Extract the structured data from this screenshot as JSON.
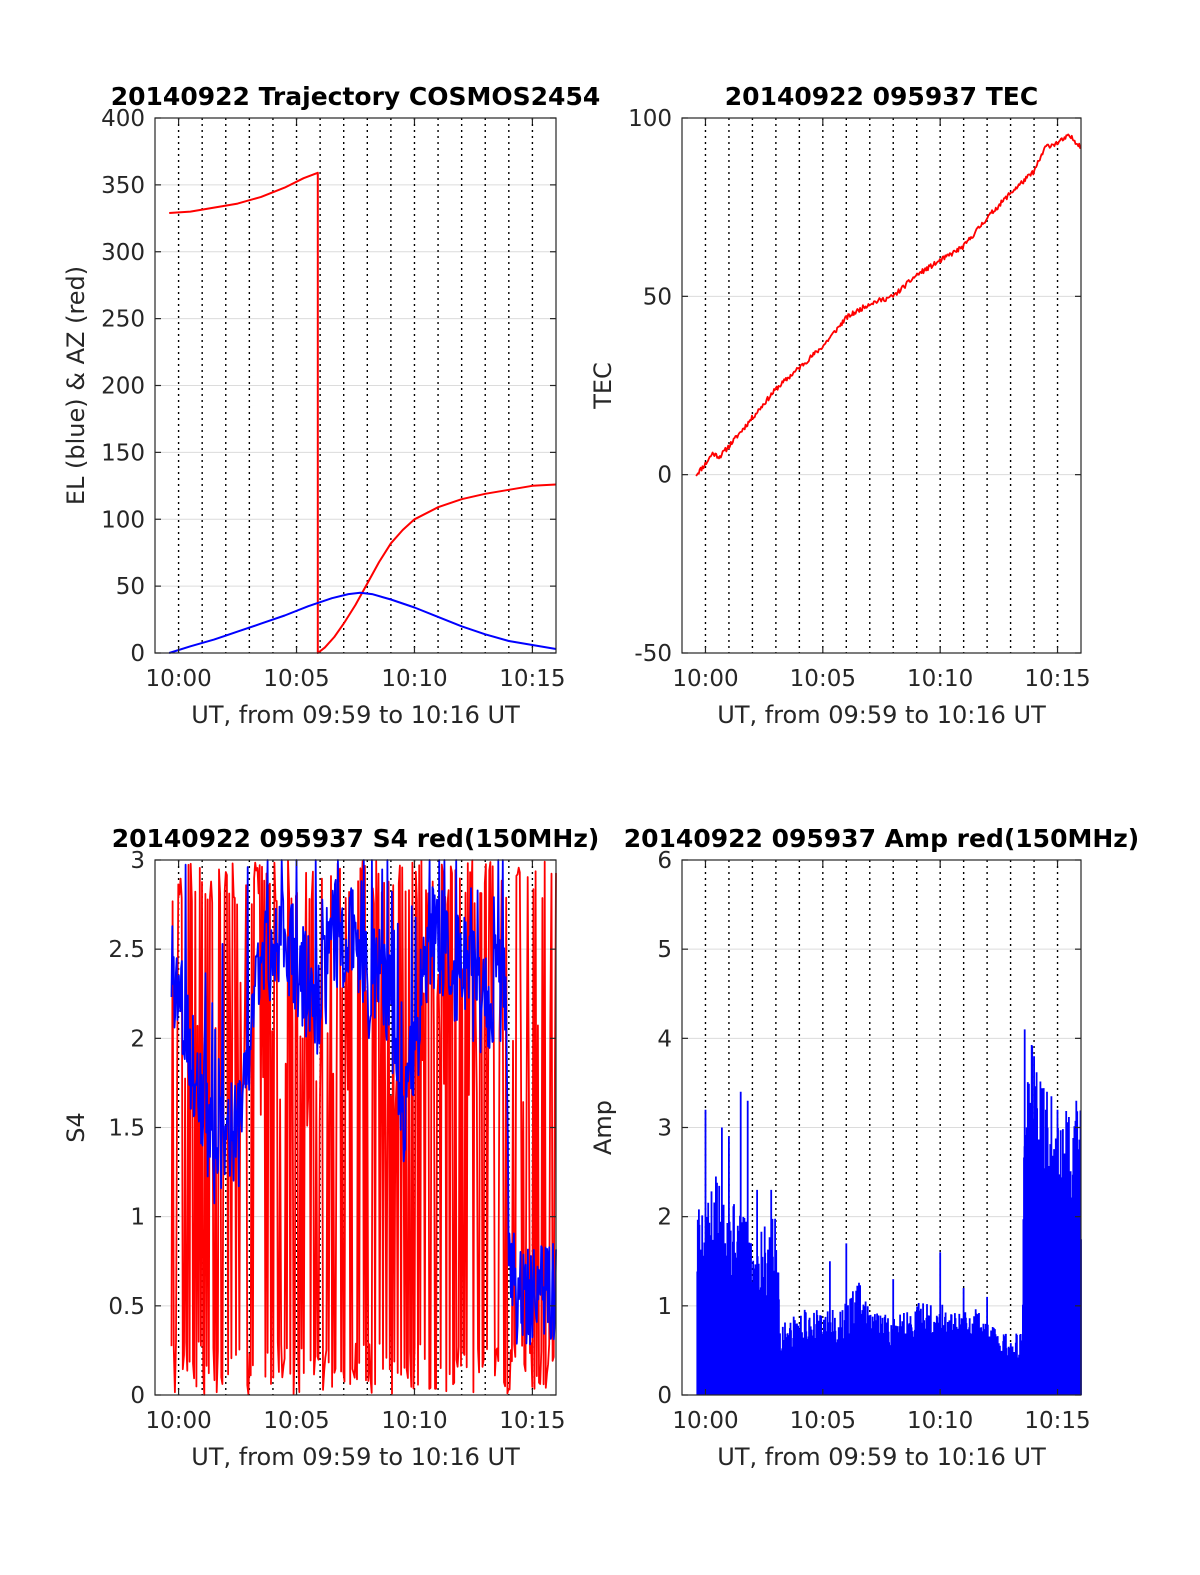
{
  "chart_data": [
    {
      "type": "line",
      "title": "20140922 Trajectory COSMOS2454",
      "xlabel": "UT, from 09:59 to 10:16 UT",
      "ylabel": "EL (blue) & AZ (red)",
      "xlim_minutes_after_0959": [
        0,
        17
      ],
      "ylim": [
        0,
        400
      ],
      "yticks": [
        "0",
        "50",
        "100",
        "150",
        "200",
        "250",
        "300",
        "350",
        "400"
      ],
      "xtick_labels": [
        "10:00",
        "10:05",
        "10:10",
        "10:15"
      ],
      "xtick_minutes": [
        1,
        6,
        11,
        16
      ],
      "grid_dotted_minutes": [
        1,
        2,
        3,
        4,
        5,
        6,
        7,
        8,
        9,
        10,
        11,
        12,
        13,
        14,
        15,
        16
      ],
      "series": [
        {
          "color": "#ff0000",
          "style": "smooth",
          "points": [
            [
              0.6,
              329
            ],
            [
              1.5,
              330
            ],
            [
              2.5,
              333
            ],
            [
              3.5,
              336
            ],
            [
              4.5,
              341
            ],
            [
              5.5,
              348
            ],
            [
              6.3,
              355
            ],
            [
              6.9,
              359
            ],
            [
              6.9,
              0
            ],
            [
              7.2,
              4
            ],
            [
              7.6,
              12
            ],
            [
              8.0,
              22
            ],
            [
              8.5,
              36
            ],
            [
              9.0,
              52
            ],
            [
              9.5,
              68
            ],
            [
              10.0,
              82
            ],
            [
              10.5,
              92
            ],
            [
              11.0,
              100
            ],
            [
              12.0,
              109
            ],
            [
              13.0,
              115
            ],
            [
              14.0,
              119
            ],
            [
              15.0,
              122
            ],
            [
              16.0,
              125
            ],
            [
              17.0,
              126
            ]
          ]
        },
        {
          "color": "#0000ff",
          "style": "smooth",
          "points": [
            [
              0.6,
              0
            ],
            [
              1.5,
              5
            ],
            [
              2.5,
              10
            ],
            [
              3.5,
              16
            ],
            [
              4.5,
              22
            ],
            [
              5.5,
              28
            ],
            [
              6.5,
              35
            ],
            [
              7.5,
              41
            ],
            [
              8.2,
              44
            ],
            [
              8.7,
              45
            ],
            [
              9.2,
              44
            ],
            [
              10.0,
              40
            ],
            [
              11.0,
              34
            ],
            [
              12.0,
              27
            ],
            [
              13.0,
              20
            ],
            [
              14.0,
              14
            ],
            [
              15.0,
              9
            ],
            [
              16.0,
              6
            ],
            [
              17.0,
              3
            ]
          ]
        }
      ]
    },
    {
      "type": "line",
      "title": "20140922 095937 TEC",
      "xlabel": "UT, from 09:59 to 10:16 UT",
      "ylabel": "TEC",
      "xlim_minutes_after_0959": [
        0,
        17
      ],
      "ylim": [
        -50,
        100
      ],
      "yticks": [
        "-50",
        "0",
        "50",
        "100"
      ],
      "xtick_labels": [
        "10:00",
        "10:05",
        "10:10",
        "10:15"
      ],
      "xtick_minutes": [
        1,
        6,
        11,
        16
      ],
      "grid_dotted_minutes": [
        1,
        2,
        3,
        4,
        5,
        6,
        7,
        8,
        9,
        10,
        11,
        12,
        13,
        14,
        15,
        16
      ],
      "series": [
        {
          "color": "#ff0000",
          "style": "jitter",
          "jitter": 0.7,
          "samples": 420,
          "seed": 11,
          "points": [
            [
              0.6,
              0
            ],
            [
              1.0,
              3
            ],
            [
              1.3,
              6
            ],
            [
              1.6,
              5
            ],
            [
              2.0,
              8
            ],
            [
              3.0,
              16
            ],
            [
              4.0,
              24
            ],
            [
              4.5,
              27
            ],
            [
              5.0,
              30
            ],
            [
              6.0,
              36
            ],
            [
              7.0,
              44
            ],
            [
              8.0,
              48
            ],
            [
              9.0,
              50
            ],
            [
              9.5,
              53
            ],
            [
              10.0,
              56
            ],
            [
              11.0,
              60
            ],
            [
              12.0,
              64
            ],
            [
              13.0,
              72
            ],
            [
              14.0,
              79
            ],
            [
              15.0,
              85
            ],
            [
              15.5,
              92
            ],
            [
              16.0,
              93
            ],
            [
              16.5,
              95
            ],
            [
              17.0,
              92
            ]
          ]
        }
      ]
    },
    {
      "type": "line",
      "title": "20140922 095937 S4 red(150MHz)",
      "xlabel": "UT, from 09:59 to 10:16 UT",
      "ylabel": "S4",
      "xlim_minutes_after_0959": [
        0,
        17
      ],
      "ylim": [
        0,
        3
      ],
      "yticks": [
        "0",
        "0.5",
        "1",
        "1.5",
        "2",
        "2.5",
        "3"
      ],
      "xtick_labels": [
        "10:00",
        "10:05",
        "10:10",
        "10:15"
      ],
      "xtick_minutes": [
        1,
        6,
        11,
        16
      ],
      "grid_dotted_minutes": [
        1,
        2,
        3,
        4,
        5,
        6,
        7,
        8,
        9,
        10,
        11,
        12,
        13,
        14,
        15,
        16
      ],
      "series": [
        {
          "color": "#ff0000",
          "style": "spiky",
          "samples": 340,
          "seed": 7,
          "low": 0,
          "high": 3,
          "from": 0.7,
          "to": 17.0,
          "points": [
            [
              0.7,
              1.8
            ],
            [
              2,
              2.0
            ],
            [
              3,
              1.8
            ],
            [
              4,
              2.0
            ],
            [
              5,
              1.8
            ],
            [
              6,
              2.0
            ],
            [
              7,
              1.8
            ],
            [
              8,
              2.0
            ],
            [
              9,
              2.0
            ],
            [
              10,
              1.8
            ],
            [
              11,
              2.0
            ],
            [
              12,
              2.0
            ],
            [
              13,
              2.0
            ],
            [
              14,
              2.0
            ],
            [
              15,
              2.0
            ],
            [
              16,
              2.0
            ],
            [
              17,
              2.0
            ]
          ]
        },
        {
          "color": "#0000ff",
          "style": "noisy",
          "samples": 520,
          "seed": 3,
          "amplitude": 0.32,
          "from": 0.7,
          "to": 17.0,
          "points": [
            [
              0.7,
              2.4
            ],
            [
              1.0,
              2.3
            ],
            [
              1.5,
              1.9
            ],
            [
              2.0,
              1.6
            ],
            [
              2.5,
              1.3
            ],
            [
              3.0,
              1.5
            ],
            [
              3.5,
              1.4
            ],
            [
              4.0,
              2.0
            ],
            [
              4.5,
              2.5
            ],
            [
              5.0,
              2.5
            ],
            [
              5.5,
              2.6
            ],
            [
              6.0,
              2.4
            ],
            [
              6.5,
              2.3
            ],
            [
              7.0,
              2.2
            ],
            [
              7.5,
              2.6
            ],
            [
              8.0,
              2.6
            ],
            [
              8.5,
              2.5
            ],
            [
              9.0,
              2.3
            ],
            [
              9.5,
              2.4
            ],
            [
              10.0,
              2.2
            ],
            [
              10.5,
              1.6
            ],
            [
              11.0,
              1.9
            ],
            [
              11.5,
              2.5
            ],
            [
              12.0,
              2.6
            ],
            [
              12.5,
              2.4
            ],
            [
              13.0,
              2.4
            ],
            [
              13.5,
              2.3
            ],
            [
              14.0,
              2.2
            ],
            [
              14.5,
              2.3
            ],
            [
              14.9,
              2.2
            ],
            [
              15.0,
              0.6
            ],
            [
              15.5,
              0.6
            ],
            [
              16.0,
              0.6
            ],
            [
              16.5,
              0.6
            ],
            [
              17.0,
              0.6
            ]
          ]
        }
      ]
    },
    {
      "type": "line",
      "title": "20140922 095937 Amp red(150MHz)",
      "xlabel": "UT, from 09:59 to 10:16 UT",
      "ylabel": "Amp",
      "xlim_minutes_after_0959": [
        0,
        17
      ],
      "ylim": [
        0,
        6
      ],
      "yticks": [
        "0",
        "1",
        "2",
        "3",
        "4",
        "5",
        "6"
      ],
      "xtick_labels": [
        "10:00",
        "10:05",
        "10:10",
        "10:15"
      ],
      "xtick_minutes": [
        1,
        6,
        11,
        16
      ],
      "grid_dotted_minutes": [
        1,
        2,
        3,
        4,
        5,
        6,
        7,
        8,
        9,
        10,
        11,
        12,
        13,
        14,
        15,
        16
      ],
      "series": [
        {
          "color": "#0000ff",
          "style": "bars",
          "samples": 700,
          "seed": 5,
          "from": 0.65,
          "to": 17.0,
          "points": [
            [
              0.65,
              2.0
            ],
            [
              1.0,
              1.8
            ],
            [
              1.5,
              2.2
            ],
            [
              2.0,
              2.0
            ],
            [
              2.5,
              1.8
            ],
            [
              3.0,
              1.6
            ],
            [
              3.5,
              1.7
            ],
            [
              4.0,
              1.8
            ],
            [
              4.2,
              0.7
            ],
            [
              5.0,
              0.8
            ],
            [
              5.5,
              0.9
            ],
            [
              6.0,
              0.8
            ],
            [
              7.0,
              0.9
            ],
            [
              7.5,
              1.2
            ],
            [
              8.0,
              0.8
            ],
            [
              9.0,
              0.8
            ],
            [
              10.0,
              0.9
            ],
            [
              10.5,
              0.9
            ],
            [
              11.0,
              0.9
            ],
            [
              11.5,
              0.8
            ],
            [
              12.0,
              0.8
            ],
            [
              12.5,
              0.9
            ],
            [
              13.0,
              0.7
            ],
            [
              14.0,
              0.6
            ],
            [
              14.5,
              0.6
            ],
            [
              14.6,
              3.3
            ],
            [
              15.0,
              3.5
            ],
            [
              15.5,
              3.0
            ],
            [
              16.0,
              2.9
            ],
            [
              16.5,
              3.0
            ],
            [
              17.0,
              3.0
            ]
          ],
          "peaks": [
            [
              1.0,
              3.2
            ],
            [
              1.7,
              3.0
            ],
            [
              2.0,
              2.9
            ],
            [
              2.5,
              3.4
            ],
            [
              2.8,
              3.3
            ],
            [
              3.2,
              2.3
            ],
            [
              3.8,
              2.3
            ],
            [
              6.3,
              1.5
            ],
            [
              7.0,
              1.7
            ],
            [
              9.0,
              1.3
            ],
            [
              11.0,
              1.6
            ],
            [
              12.0,
              1.2
            ],
            [
              13.0,
              1.1
            ],
            [
              14.6,
              4.1
            ],
            [
              15.0,
              3.8
            ],
            [
              15.5,
              3.2
            ],
            [
              16.0,
              3.2
            ],
            [
              16.8,
              3.3
            ]
          ]
        }
      ]
    }
  ]
}
